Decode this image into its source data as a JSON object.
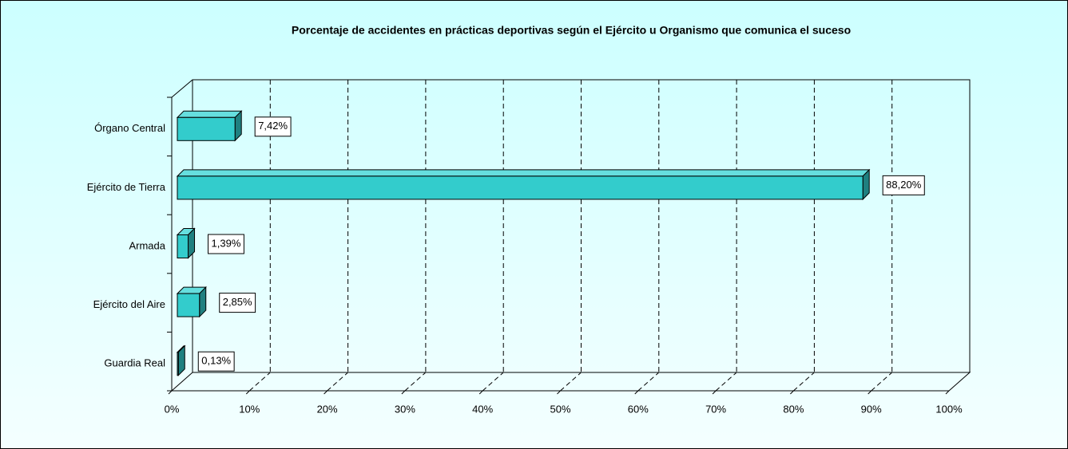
{
  "chart_data": {
    "type": "bar3d_h",
    "title": "Porcentaje de accidentes en prácticas deportivas según el Ejército u Organismo que comunica el suceso",
    "categories": [
      "Órgano Central",
      "Ejército de Tierra",
      "Armada",
      "Ejército del Aire",
      "Guardia Real"
    ],
    "values": [
      7.42,
      88.2,
      1.39,
      2.85,
      0.13
    ],
    "value_labels": [
      "7,42%",
      "88,20%",
      "1,39%",
      "2,85%",
      "0,13%"
    ],
    "color": "#33cccc",
    "xlim": [
      0,
      100
    ],
    "xticks": [
      {
        "value": 0,
        "label": "0%"
      },
      {
        "value": 10,
        "label": "10%"
      },
      {
        "value": 20,
        "label": "20%"
      },
      {
        "value": 30,
        "label": "30%"
      },
      {
        "value": 40,
        "label": "40%"
      },
      {
        "value": 50,
        "label": "50%"
      },
      {
        "value": 60,
        "label": "60%"
      },
      {
        "value": 70,
        "label": "70%"
      },
      {
        "value": 80,
        "label": "80%"
      },
      {
        "value": 90,
        "label": "90%"
      },
      {
        "value": 100,
        "label": "100%"
      }
    ],
    "grid": true
  }
}
